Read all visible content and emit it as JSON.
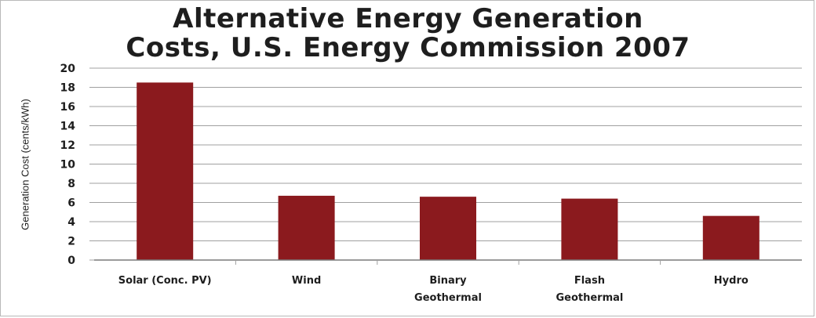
{
  "chart_data": {
    "type": "bar",
    "title_lines": [
      "Alternative Energy Generation",
      "Costs, U.S. Energy Commission 2007"
    ],
    "xlabel": "",
    "ylabel": "Generation Cost (cents/kWh)",
    "categories": [
      [
        "Solar (Conc. PV)"
      ],
      [
        "Wind"
      ],
      [
        "Binary",
        "Geothermal"
      ],
      [
        "Flash",
        "Geothermal"
      ],
      [
        "Hydro"
      ]
    ],
    "values": [
      18.5,
      6.7,
      6.6,
      6.4,
      4.6
    ],
    "ylim": [
      0,
      20
    ],
    "yticks": [
      0,
      2,
      4,
      6,
      8,
      10,
      12,
      14,
      16,
      18,
      20
    ],
    "grid": true,
    "bar_color": "#8b1a1e",
    "grid_color": "#a0a0a0"
  }
}
